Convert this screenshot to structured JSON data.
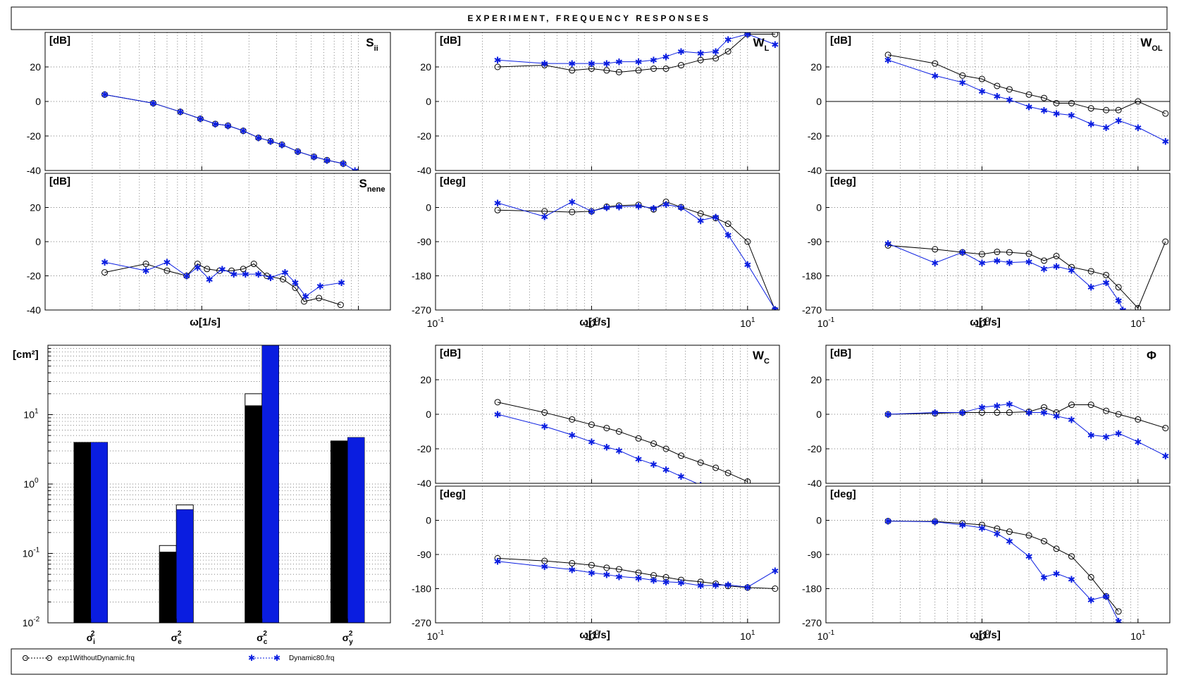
{
  "title": "EXPERIMENT, FREQUENCY RESPONSES",
  "colors": {
    "series_a": "#000000",
    "series_b": "#0a1de0",
    "bar_a": "#000000",
    "bar_b": "#0a1de0"
  },
  "legend": [
    {
      "name": "exp1WithoutDynamic.frq",
      "marker": "circle",
      "color": "#000000"
    },
    {
      "name": "Dynamic80.frq",
      "marker": "star",
      "color": "#0a1de0"
    }
  ],
  "chart_data": [
    {
      "id": "sii",
      "type": "line",
      "xscale": "log",
      "xlim": [
        0.1,
        16
      ],
      "ylim": [
        -40,
        40
      ],
      "yticks": [
        -40,
        -20,
        0,
        20
      ],
      "grid": true,
      "unit": "[dB]",
      "label_main": "S",
      "label_sub": "ii",
      "xlabel": "",
      "show_xticks": false,
      "series": [
        {
          "marker": "circle",
          "color": "#000000",
          "x": [
            0.24,
            0.49,
            0.73,
            0.98,
            1.22,
            1.47,
            1.84,
            2.3,
            2.75,
            3.25,
            4.1,
            5.2,
            6.3,
            8.0
          ],
          "y": [
            4,
            -1,
            -6,
            -10,
            -13,
            -14,
            -17,
            -21,
            -23,
            -25,
            -29,
            -32,
            -34,
            -36
          ]
        },
        {
          "marker": "star",
          "color": "#0a1de0",
          "x": [
            0.24,
            0.49,
            0.73,
            0.98,
            1.22,
            1.47,
            1.84,
            2.3,
            2.75,
            3.25,
            4.1,
            5.2,
            6.3,
            8.0,
            9.5
          ],
          "y": [
            4,
            -1,
            -6,
            -10,
            -13,
            -14,
            -17,
            -21,
            -23,
            -25,
            -29,
            -32,
            -34,
            -36,
            -40
          ]
        }
      ]
    },
    {
      "id": "snene",
      "type": "line",
      "xscale": "log",
      "xlim": [
        0.1,
        16
      ],
      "ylim": [
        -40,
        40
      ],
      "yticks": [
        -40,
        -20,
        0,
        20
      ],
      "grid": true,
      "unit": "[dB]",
      "label_main": "S",
      "label_sub": "nene",
      "xlabel": "ω[1/s]",
      "show_xticks": false,
      "series": [
        {
          "marker": "circle",
          "color": "#000000",
          "x": [
            0.24,
            0.44,
            0.6,
            0.8,
            0.94,
            1.08,
            1.3,
            1.55,
            1.84,
            2.15,
            2.6,
            3.3,
            3.95,
            4.5,
            5.6,
            7.7
          ],
          "y": [
            -18,
            -13,
            -17,
            -20,
            -13,
            -16,
            -17,
            -17,
            -16,
            -13,
            -20,
            -22,
            -27,
            -35,
            -33,
            -37
          ]
        },
        {
          "marker": "star",
          "color": "#0a1de0",
          "x": [
            0.24,
            0.44,
            0.6,
            0.8,
            0.94,
            1.12,
            1.35,
            1.6,
            1.9,
            2.3,
            2.75,
            3.4,
            3.95,
            4.6,
            5.7,
            7.8
          ],
          "y": [
            -12,
            -17,
            -12,
            -20,
            -15,
            -22,
            -16,
            -19,
            -19,
            -19,
            -21,
            -18,
            -24,
            -32,
            -26,
            -24
          ]
        }
      ]
    },
    {
      "id": "wl",
      "type": "line",
      "xscale": "log",
      "xlim": [
        0.1,
        16
      ],
      "ylim": [
        -40,
        40
      ],
      "yticks": [
        -40,
        -20,
        0,
        20
      ],
      "grid": true,
      "unit": "[dB]",
      "label_main": "W",
      "label_sub": "L",
      "xlabel": "",
      "show_xticks": false,
      "series": [
        {
          "marker": "circle",
          "color": "#000000",
          "x": [
            0.25,
            0.5,
            0.75,
            1.0,
            1.25,
            1.5,
            2.0,
            2.5,
            3.0,
            3.75,
            5.0,
            6.25,
            7.5,
            10.0,
            15.0
          ],
          "y": [
            20,
            21,
            18,
            19,
            18,
            17,
            18,
            19,
            19,
            21,
            24,
            25,
            29,
            39,
            39
          ]
        },
        {
          "marker": "star",
          "color": "#0a1de0",
          "x": [
            0.25,
            0.5,
            0.75,
            1.0,
            1.25,
            1.5,
            2.0,
            2.5,
            3.0,
            3.75,
            5.0,
            6.25,
            7.5,
            10.0,
            15.0
          ],
          "y": [
            24,
            22,
            22,
            22,
            22,
            23,
            23,
            24,
            26,
            29,
            28,
            29,
            36,
            39,
            33
          ]
        }
      ]
    },
    {
      "id": "wl_phase",
      "type": "line",
      "xscale": "log",
      "xlim": [
        0.1,
        16
      ],
      "ylim": [
        -270,
        90
      ],
      "yticks": [
        -270,
        -180,
        -90,
        0
      ],
      "grid": true,
      "unit": "[deg]",
      "label_main": "",
      "label_sub": "",
      "xlabel": "ω[1/s]",
      "show_xticks": true,
      "series": [
        {
          "marker": "circle",
          "color": "#000000",
          "x": [
            0.25,
            0.5,
            0.75,
            1.0,
            1.25,
            1.5,
            2.0,
            2.5,
            3.0,
            3.75,
            5.0,
            6.25,
            7.5,
            10.0,
            15.0
          ],
          "y": [
            -7,
            -10,
            -12,
            -10,
            2,
            5,
            7,
            -5,
            15,
            1,
            -16,
            -28,
            -43,
            -90,
            -270
          ]
        },
        {
          "marker": "star",
          "color": "#0a1de0",
          "x": [
            0.25,
            0.5,
            0.75,
            1.0,
            1.25,
            1.5,
            2.0,
            2.5,
            3.0,
            3.75,
            5.0,
            6.25,
            7.5,
            10.0,
            15.0
          ],
          "y": [
            12,
            -24,
            15,
            -10,
            0,
            2,
            4,
            -2,
            8,
            0,
            -34,
            -25,
            -72,
            -150,
            -268
          ]
        }
      ]
    },
    {
      "id": "wol",
      "type": "line",
      "xscale": "log",
      "xlim": [
        0.1,
        16
      ],
      "ylim": [
        -40,
        40
      ],
      "yticks": [
        -40,
        -20,
        0,
        20
      ],
      "grid": true,
      "zero_line": true,
      "unit": "[dB]",
      "label_main": "W",
      "label_sub": "OL",
      "xlabel": "",
      "show_xticks": false,
      "series": [
        {
          "marker": "circle",
          "color": "#000000",
          "x": [
            0.25,
            0.5,
            0.75,
            1.0,
            1.25,
            1.5,
            2.0,
            2.5,
            3.0,
            3.75,
            5.0,
            6.25,
            7.5,
            10.0,
            15.0
          ],
          "y": [
            27,
            22,
            15,
            13,
            9,
            7,
            4,
            2,
            -1,
            -1,
            -4,
            -5,
            -5,
            0,
            -7
          ]
        },
        {
          "marker": "star",
          "color": "#0a1de0",
          "x": [
            0.25,
            0.5,
            0.75,
            1.0,
            1.25,
            1.5,
            2.0,
            2.5,
            3.0,
            3.75,
            5.0,
            6.25,
            7.5,
            10.0,
            15.0
          ],
          "y": [
            24,
            15,
            11,
            6,
            3,
            1,
            -3,
            -5,
            -7,
            -8,
            -13,
            -15,
            -11,
            -15,
            -23
          ]
        }
      ]
    },
    {
      "id": "wol_phase",
      "type": "line",
      "xscale": "log",
      "xlim": [
        0.1,
        16
      ],
      "ylim": [
        -270,
        90
      ],
      "yticks": [
        -270,
        -180,
        -90,
        0
      ],
      "grid": true,
      "unit": "[deg]",
      "label_main": "",
      "label_sub": "",
      "xlabel": "ω[1/s]",
      "show_xticks": true,
      "series": [
        {
          "marker": "circle",
          "color": "#000000",
          "x": [
            0.25,
            0.5,
            0.75,
            1.0,
            1.25,
            1.5,
            2.0,
            2.5,
            3.0,
            3.75,
            5.0,
            6.25,
            7.5,
            10.0,
            15.0
          ],
          "y": [
            -100,
            -110,
            -118,
            -123,
            -117,
            -118,
            -122,
            -140,
            -128,
            -157,
            -168,
            -178,
            -210,
            -265,
            -90
          ]
        },
        {
          "marker": "star",
          "color": "#0a1de0",
          "x": [
            0.25,
            0.5,
            0.75,
            1.0,
            1.25,
            1.5,
            2.0,
            2.5,
            3.0,
            3.75,
            5.0,
            6.25,
            7.5,
            8.0
          ],
          "y": [
            -95,
            -146,
            -118,
            -146,
            -140,
            -145,
            -143,
            -161,
            -155,
            -165,
            -210,
            -198,
            -245,
            -270
          ]
        }
      ]
    },
    {
      "id": "wc",
      "type": "line",
      "xscale": "log",
      "xlim": [
        0.1,
        16
      ],
      "ylim": [
        -40,
        40
      ],
      "yticks": [
        -40,
        -20,
        0,
        20
      ],
      "grid": true,
      "unit": "[dB]",
      "label_main": "W",
      "label_sub": "C",
      "xlabel": "",
      "show_xticks": false,
      "series": [
        {
          "marker": "circle",
          "color": "#000000",
          "x": [
            0.25,
            0.5,
            0.75,
            1.0,
            1.25,
            1.5,
            2.0,
            2.5,
            3.0,
            3.75,
            5.0,
            6.25,
            7.5,
            10.0
          ],
          "y": [
            7,
            1,
            -3,
            -6,
            -8,
            -10,
            -14,
            -17,
            -20,
            -24,
            -28,
            -31,
            -34,
            -39
          ]
        },
        {
          "marker": "star",
          "color": "#0a1de0",
          "x": [
            0.25,
            0.5,
            0.75,
            1.0,
            1.25,
            1.5,
            2.0,
            2.5,
            3.0,
            3.75,
            5.0
          ],
          "y": [
            0,
            -7,
            -12,
            -16,
            -19,
            -21,
            -26,
            -29,
            -32,
            -36,
            -41
          ]
        }
      ]
    },
    {
      "id": "wc_phase",
      "type": "line",
      "xscale": "log",
      "xlim": [
        0.1,
        16
      ],
      "ylim": [
        -270,
        90
      ],
      "yticks": [
        -270,
        -180,
        -90,
        0
      ],
      "grid": true,
      "unit": "[deg]",
      "label_main": "",
      "label_sub": "",
      "xlabel": "ω[1/s]",
      "show_xticks": true,
      "series": [
        {
          "marker": "circle",
          "color": "#000000",
          "x": [
            0.25,
            0.5,
            0.75,
            1.0,
            1.25,
            1.5,
            2.0,
            2.5,
            3.0,
            3.75,
            5.0,
            6.25,
            7.5,
            10.0,
            15.0
          ],
          "y": [
            -100,
            -107,
            -113,
            -118,
            -125,
            -129,
            -138,
            -145,
            -150,
            -157,
            -162,
            -167,
            -173,
            -177,
            -180
          ]
        },
        {
          "marker": "star",
          "color": "#0a1de0",
          "x": [
            0.25,
            0.5,
            0.75,
            1.0,
            1.25,
            1.5,
            2.0,
            2.5,
            3.0,
            3.75,
            5.0,
            6.25,
            7.5,
            10.0,
            15.0
          ],
          "y": [
            -108,
            -122,
            -130,
            -138,
            -143,
            -148,
            -152,
            -158,
            -162,
            -164,
            -172,
            -171,
            -170,
            -176,
            -133
          ]
        }
      ]
    },
    {
      "id": "phi",
      "type": "line",
      "xscale": "log",
      "xlim": [
        0.1,
        16
      ],
      "ylim": [
        -40,
        40
      ],
      "yticks": [
        -40,
        -20,
        0,
        20
      ],
      "grid": true,
      "unit": "[dB]",
      "label_main": "Φ",
      "label_sub": "",
      "xlabel": "",
      "show_xticks": false,
      "series": [
        {
          "marker": "circle",
          "color": "#000000",
          "x": [
            0.25,
            0.5,
            0.75,
            1.0,
            1.25,
            1.5,
            2.0,
            2.5,
            3.0,
            3.75,
            5.0,
            6.25,
            7.5,
            10.0,
            15.0
          ],
          "y": [
            0,
            0.5,
            1,
            1,
            1,
            1,
            1.5,
            4,
            1,
            5.5,
            5.5,
            2,
            0,
            -3,
            -8
          ]
        },
        {
          "marker": "star",
          "color": "#0a1de0",
          "x": [
            0.25,
            0.5,
            0.75,
            1.0,
            1.25,
            1.5,
            2.0,
            2.5,
            3.0,
            3.75,
            5.0,
            6.25,
            7.5,
            10.0,
            15.0
          ],
          "y": [
            0,
            1,
            1,
            4,
            5,
            6,
            1,
            1,
            -1,
            -3,
            -12,
            -13,
            -11,
            -16,
            -24
          ]
        }
      ]
    },
    {
      "id": "phi_phase",
      "type": "line",
      "xscale": "log",
      "xlim": [
        0.1,
        16
      ],
      "ylim": [
        -270,
        90
      ],
      "yticks": [
        -270,
        -180,
        -90,
        0
      ],
      "grid": true,
      "unit": "[deg]",
      "label_main": "",
      "label_sub": "",
      "xlabel": "ω[1/s]",
      "show_xticks": true,
      "series": [
        {
          "marker": "circle",
          "color": "#000000",
          "x": [
            0.25,
            0.5,
            0.75,
            1.0,
            1.25,
            1.5,
            2.0,
            2.5,
            3.0,
            3.75,
            5.0,
            6.25,
            7.5
          ],
          "y": [
            -2,
            -3,
            -8,
            -12,
            -22,
            -30,
            -40,
            -55,
            -75,
            -95,
            -150,
            -200,
            -240
          ]
        },
        {
          "marker": "star",
          "color": "#0a1de0",
          "x": [
            0.25,
            0.5,
            0.75,
            1.0,
            1.25,
            1.5,
            2.0,
            2.5,
            3.0,
            3.75,
            5.0,
            6.25,
            7.5
          ],
          "y": [
            -2,
            -4,
            -12,
            -20,
            -35,
            -55,
            -95,
            -150,
            -140,
            -155,
            -210,
            -200,
            -265
          ]
        }
      ]
    },
    {
      "id": "variances",
      "type": "bar",
      "yscale": "log",
      "ylim": [
        0.01,
        100
      ],
      "unit": "[cm²]",
      "yticks_log": [
        -2,
        -1,
        0,
        1
      ],
      "categories": [
        {
          "main": "σ",
          "sup": "2",
          "sub": "i"
        },
        {
          "main": "σ",
          "sup": "2",
          "sub": "e"
        },
        {
          "main": "σ",
          "sup": "2",
          "sub": "c"
        },
        {
          "main": "σ",
          "sup": "2",
          "sub": "y"
        }
      ],
      "series": [
        {
          "color": "#000000",
          "values": [
            4.0,
            0.105,
            13.5,
            4.2
          ],
          "outline_values": [
            4.0,
            0.13,
            20.0,
            4.2
          ]
        },
        {
          "color": "#0a1de0",
          "values": [
            4.0,
            0.43,
            100,
            4.7
          ],
          "outline_values": [
            4.0,
            0.5,
            100,
            4.7
          ]
        }
      ]
    }
  ]
}
